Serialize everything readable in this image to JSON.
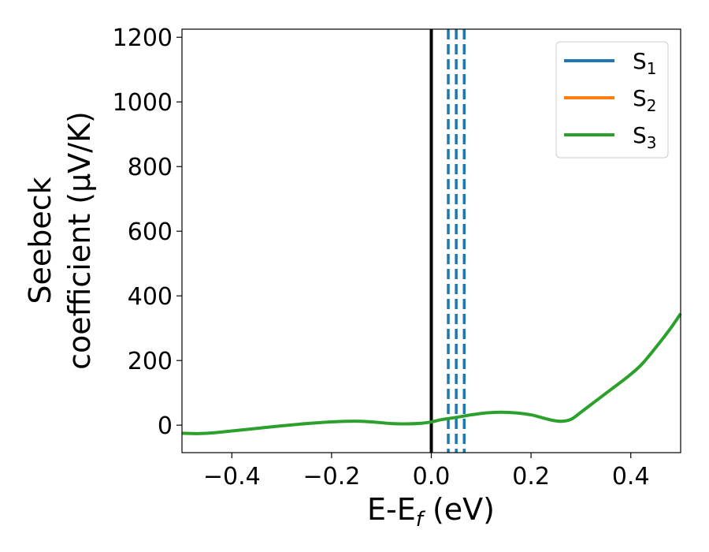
{
  "chart_data": {
    "type": "line",
    "xlabel": "E-E",
    "xlabel_sub": "f",
    "xlabel_unit": " (eV)",
    "ylabel_line1": "Seebeck",
    "ylabel_line2": "coefficient  (μV/K)",
    "xlim": [
      -0.5,
      0.5
    ],
    "ylim": [
      -85,
      1225
    ],
    "x_ticks": [
      -0.4,
      -0.2,
      0.0,
      0.2,
      0.4
    ],
    "x_tick_labels": [
      "−0.4",
      "−0.2",
      "0.0",
      "0.2",
      "0.4"
    ],
    "y_ticks": [
      0,
      200,
      400,
      600,
      800,
      1000,
      1200
    ],
    "y_tick_labels": [
      "0",
      "200",
      "400",
      "600",
      "800",
      "1000",
      "1200"
    ],
    "grid": false,
    "legend_position": "top-right",
    "legend": [
      {
        "label": "S",
        "sub": "1",
        "color": "#1f77b4"
      },
      {
        "label": "S",
        "sub": "2",
        "color": "#ff7f0e"
      },
      {
        "label": "S",
        "sub": "3",
        "color": "#2ca02c"
      }
    ],
    "vertical_lines": [
      {
        "x": 0.0,
        "color": "#000000",
        "style": "solid"
      },
      {
        "x": 0.034,
        "color": "#1f77b4",
        "style": "dashed"
      },
      {
        "x": 0.05,
        "color": "#1f77b4",
        "style": "dashed"
      },
      {
        "x": 0.066,
        "color": "#1f77b4",
        "style": "dashed"
      }
    ],
    "series": [
      {
        "name": "S3",
        "color": "#2ca02c",
        "x": [
          -0.5,
          -0.47,
          -0.44,
          -0.4,
          -0.35,
          -0.3,
          -0.25,
          -0.2,
          -0.17,
          -0.14,
          -0.11,
          -0.08,
          -0.05,
          -0.02,
          0.0,
          0.02,
          0.05,
          0.08,
          0.11,
          0.14,
          0.17,
          0.2,
          0.22,
          0.24,
          0.26,
          0.28,
          0.3,
          0.33,
          0.36,
          0.39,
          0.42,
          0.45,
          0.48,
          0.5
        ],
        "y": [
          -25,
          -26,
          -24,
          -18,
          -10,
          -2,
          5,
          10,
          12,
          12,
          9,
          5,
          4,
          6,
          10,
          17,
          24,
          32,
          38,
          40,
          38,
          32,
          24,
          16,
          12,
          18,
          40,
          75,
          110,
          145,
          185,
          240,
          300,
          345
        ]
      }
    ]
  }
}
